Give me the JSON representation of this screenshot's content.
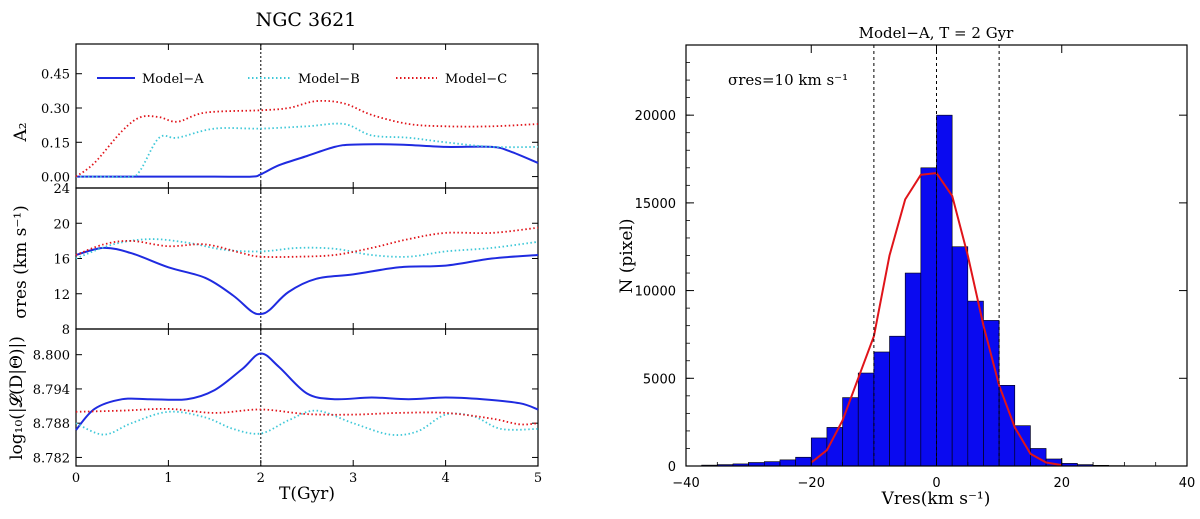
{
  "chart_data": [
    {
      "type": "line",
      "title": "NGC 3621",
      "panel": "A2",
      "ylabel": "A₂",
      "xlabel": "T(Gyr)",
      "xlim": [
        0,
        5
      ],
      "ylim": [
        -0.05,
        0.58
      ],
      "yticks": [
        "0.00",
        "0.15",
        "0.30",
        "0.45"
      ],
      "xticks": [
        "0",
        "1",
        "2",
        "3",
        "4",
        "5"
      ],
      "vline_x": 2,
      "legend": "top",
      "series": [
        {
          "name": "Model−A",
          "color": "#1f2be0",
          "style": "solid",
          "x": [
            0,
            0.5,
            1,
            1.5,
            1.9,
            2.0,
            2.2,
            2.5,
            2.8,
            3.0,
            3.5,
            4.0,
            4.5,
            4.7,
            5.0
          ],
          "y": [
            0.0,
            0.0,
            0.0,
            0.0,
            0.0,
            0.01,
            0.05,
            0.09,
            0.13,
            0.14,
            0.14,
            0.13,
            0.13,
            0.11,
            0.06
          ]
        },
        {
          "name": "Model−B",
          "color": "#3fc8d8",
          "style": "dotted",
          "x": [
            0,
            0.3,
            0.6,
            0.7,
            0.9,
            1.1,
            1.5,
            2.0,
            2.5,
            2.9,
            3.2,
            3.6,
            4.0,
            4.5,
            5.0
          ],
          "y": [
            0.0,
            0.0,
            0.0,
            0.03,
            0.17,
            0.17,
            0.21,
            0.21,
            0.22,
            0.23,
            0.18,
            0.17,
            0.15,
            0.13,
            0.13
          ]
        },
        {
          "name": "Model−C",
          "color": "#e0141a",
          "style": "dotted",
          "x": [
            0,
            0.2,
            0.5,
            0.7,
            0.9,
            1.1,
            1.4,
            2.0,
            2.3,
            2.6,
            2.9,
            3.2,
            3.6,
            4.0,
            4.5,
            5.0
          ],
          "y": [
            0.0,
            0.06,
            0.2,
            0.26,
            0.26,
            0.24,
            0.28,
            0.29,
            0.3,
            0.33,
            0.32,
            0.27,
            0.23,
            0.22,
            0.22,
            0.23
          ]
        }
      ]
    },
    {
      "type": "line",
      "panel": "sigma",
      "ylabel": "σres (km s⁻¹)",
      "xlim": [
        0,
        5
      ],
      "ylim": [
        8,
        24
      ],
      "yticks": [
        "8",
        "12",
        "16",
        "20",
        "24"
      ],
      "series": [
        {
          "name": "Model−A",
          "color": "#1f2be0",
          "style": "solid",
          "x": [
            0,
            0.3,
            0.6,
            1.0,
            1.4,
            1.7,
            1.9,
            2.0,
            2.1,
            2.3,
            2.6,
            3.0,
            3.5,
            4.0,
            4.5,
            5.0
          ],
          "y": [
            16.4,
            17.2,
            16.6,
            15.0,
            13.8,
            11.8,
            10.0,
            9.7,
            10.2,
            12.2,
            13.7,
            14.2,
            15.0,
            15.2,
            16.0,
            16.4
          ]
        },
        {
          "name": "Model−B",
          "color": "#3fc8d8",
          "style": "dotted",
          "x": [
            0,
            0.4,
            0.8,
            1.2,
            1.6,
            2.0,
            2.4,
            2.8,
            3.2,
            3.6,
            4.0,
            4.5,
            5.0
          ],
          "y": [
            16.0,
            17.6,
            18.2,
            17.8,
            17.0,
            16.8,
            17.2,
            17.1,
            16.4,
            16.2,
            16.8,
            17.2,
            17.9
          ]
        },
        {
          "name": "Model−C",
          "color": "#e0141a",
          "style": "dotted",
          "x": [
            0,
            0.3,
            0.6,
            1.0,
            1.4,
            1.8,
            2.0,
            2.4,
            2.8,
            3.2,
            3.6,
            4.0,
            4.5,
            5.0
          ],
          "y": [
            16.4,
            17.6,
            18.0,
            17.4,
            17.6,
            16.6,
            16.2,
            16.2,
            16.4,
            17.2,
            18.2,
            18.9,
            18.9,
            19.5
          ]
        }
      ]
    },
    {
      "type": "line",
      "panel": "loglike",
      "ylabel": "log₁₀(|𝓛(D|Θ)|)",
      "xlim": [
        0,
        5
      ],
      "ylim": [
        8.7805,
        8.8045
      ],
      "yticks": [
        "8.782",
        "8.788",
        "8.794",
        "8.800"
      ],
      "series": [
        {
          "name": "Model−A",
          "color": "#1f2be0",
          "style": "solid",
          "x": [
            0,
            0.2,
            0.5,
            0.8,
            1.2,
            1.5,
            1.8,
            2.0,
            2.2,
            2.5,
            2.8,
            3.2,
            3.6,
            4.0,
            4.4,
            4.8,
            5.0
          ],
          "y": [
            8.7868,
            8.7905,
            8.7922,
            8.7922,
            8.7922,
            8.7938,
            8.7975,
            8.8002,
            8.7978,
            8.7932,
            8.7922,
            8.7925,
            8.7922,
            8.7925,
            8.7922,
            8.7915,
            8.7904
          ]
        },
        {
          "name": "Model−B",
          "color": "#3fc8d8",
          "style": "dotted",
          "x": [
            0,
            0.3,
            0.6,
            1.0,
            1.4,
            1.7,
            2.0,
            2.3,
            2.6,
            3.0,
            3.4,
            3.7,
            4.0,
            4.3,
            4.6,
            5.0
          ],
          "y": [
            8.788,
            8.786,
            8.788,
            8.79,
            8.789,
            8.787,
            8.7862,
            8.7885,
            8.7902,
            8.788,
            8.786,
            8.7866,
            8.7895,
            8.7892,
            8.787,
            8.787
          ]
        },
        {
          "name": "Model−C",
          "color": "#e0141a",
          "style": "dotted",
          "x": [
            0,
            0.5,
            1.0,
            1.5,
            2.0,
            2.5,
            3.0,
            3.5,
            4.0,
            4.5,
            4.8,
            5.0
          ],
          "y": [
            8.79,
            8.7902,
            8.7905,
            8.7898,
            8.7904,
            8.7896,
            8.7895,
            8.7898,
            8.7898,
            8.7888,
            8.7878,
            8.788
          ]
        }
      ]
    },
    {
      "type": "bar",
      "title": "Model−A, T = 2 Gyr",
      "xlabel": "Vres(km s⁻¹)",
      "ylabel": "N (pixel)",
      "xlim": [
        -40,
        40
      ],
      "ylim": [
        0,
        24000
      ],
      "xticks": [
        "−40",
        "−20",
        "0",
        "20",
        "40"
      ],
      "yticks": [
        "0",
        "5000",
        "10000",
        "15000",
        "20000"
      ],
      "annotation": "σres=10 km s⁻¹",
      "vlines": [
        -10,
        0,
        10
      ],
      "bar_color": "#0a0af0",
      "bin_width": 2.5,
      "bin_starts": [
        -37.5,
        -35,
        -32.5,
        -30,
        -27.5,
        -25,
        -22.5,
        -20,
        -17.5,
        -15,
        -12.5,
        -10,
        -7.5,
        -5,
        -2.5,
        0,
        2.5,
        5,
        7.5,
        10,
        12.5,
        15,
        17.5,
        20,
        22.5,
        25,
        27.5
      ],
      "values": [
        50,
        80,
        120,
        200,
        250,
        350,
        500,
        1600,
        2200,
        3900,
        5300,
        6500,
        7400,
        11000,
        17000,
        20000,
        12500,
        9400,
        8300,
        4600,
        2300,
        1000,
        400,
        150,
        80,
        40,
        20
      ],
      "curve_color": "#e0141a",
      "curve_x": [
        -20,
        -17.5,
        -15,
        -12.5,
        -10,
        -7.5,
        -5,
        -2.5,
        0,
        2.5,
        5,
        7.5,
        10,
        12.5,
        15,
        17.5,
        20
      ],
      "curve_y": [
        200,
        900,
        2600,
        5000,
        7400,
        12000,
        15200,
        16600,
        16700,
        15400,
        12000,
        8000,
        4600,
        2200,
        700,
        200,
        50
      ]
    }
  ]
}
